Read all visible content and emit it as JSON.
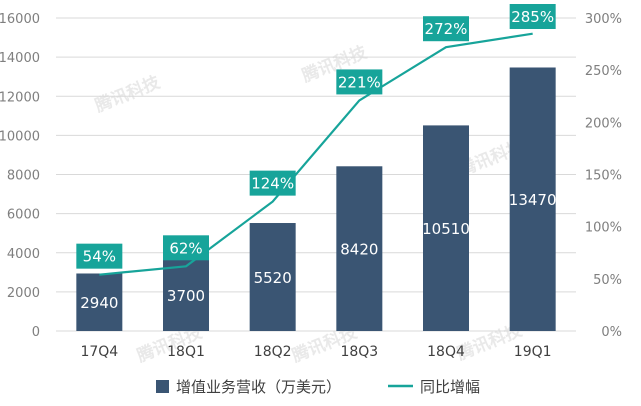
{
  "chart_data": {
    "type": "bar",
    "categories": [
      "17Q4",
      "18Q1",
      "18Q2",
      "18Q3",
      "18Q4",
      "19Q1"
    ],
    "series": [
      {
        "name": "增值业务营收（万美元）",
        "type": "bar",
        "axis": "left",
        "values": [
          2940,
          3700,
          5520,
          8420,
          10510,
          13470
        ],
        "labels": [
          "2940",
          "3700",
          "5520",
          "8420",
          "10510",
          "13470"
        ]
      },
      {
        "name": "同比增幅",
        "type": "line",
        "axis": "right",
        "values": [
          54,
          62,
          124,
          221,
          272,
          285
        ],
        "labels": [
          "54%",
          "62%",
          "124%",
          "221%",
          "272%",
          "285%"
        ]
      }
    ],
    "left_axis": {
      "ylim": [
        0,
        16000
      ],
      "ticks": [
        "0",
        "2000",
        "4000",
        "6000",
        "8000",
        "10000",
        "12000",
        "14000",
        "16000"
      ]
    },
    "right_axis": {
      "ylim": [
        0,
        300
      ],
      "ticks": [
        "0%",
        "50%",
        "100%",
        "150%",
        "200%",
        "250%",
        "300%"
      ]
    },
    "legend_position": "bottom",
    "watermark": "腾讯科技",
    "colors": {
      "bar": "#3a5573",
      "line": "#17a49a",
      "label_box": "#17a49a",
      "grid": "#d9d9d9"
    }
  }
}
